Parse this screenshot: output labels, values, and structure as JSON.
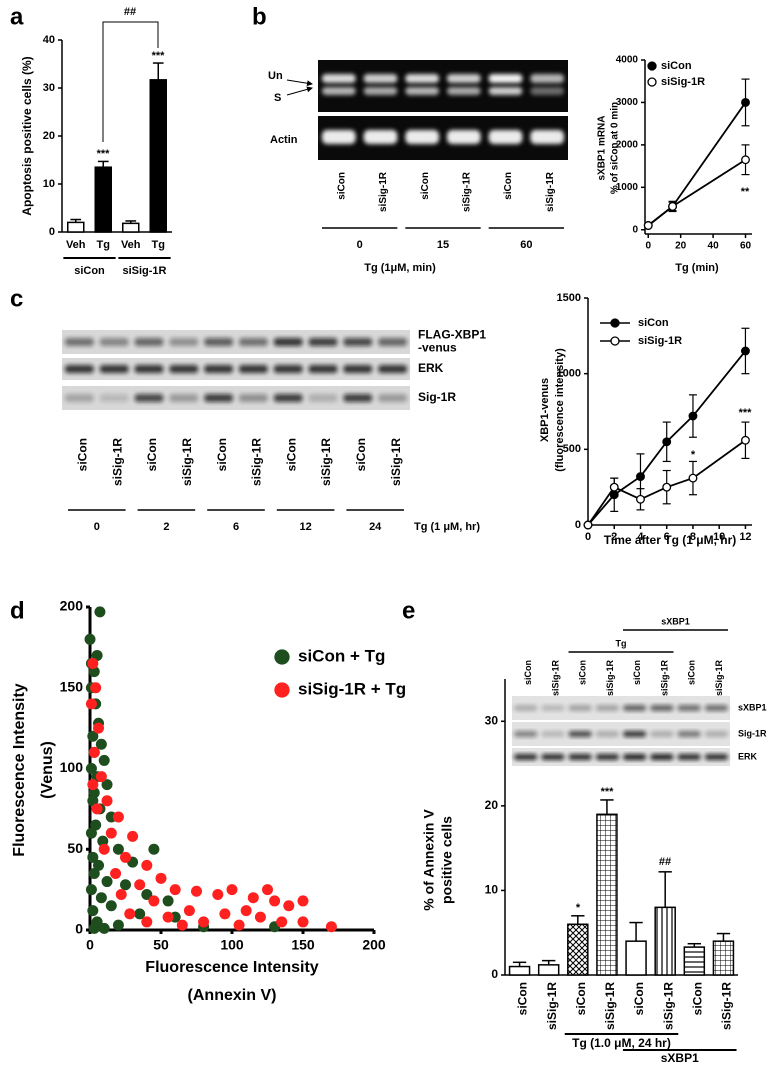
{
  "chart_data": [
    {
      "panel": "a",
      "type": "bar",
      "ylabel": [
        "Apoptosis positive cells (%)"
      ],
      "categories": [
        "Veh",
        "Tg",
        "Veh",
        "Tg"
      ],
      "groups": [
        "siCon",
        "siSig-1R"
      ],
      "values": [
        2,
        13.5,
        1.8,
        31.7
      ],
      "errors": [
        0.6,
        1.2,
        0.5,
        3.5
      ],
      "colors": [
        "#ffffff",
        "#000000",
        "#ffffff",
        "#000000"
      ],
      "ylim": [
        0,
        40
      ],
      "yticks": [
        0,
        10,
        20,
        30,
        40
      ],
      "annotations": [
        "***",
        "***",
        "##"
      ]
    },
    {
      "panel": "b",
      "type": "line",
      "ylabel": [
        "sXBP1 mRNA",
        "% of siCon at 0 min"
      ],
      "xlabel": "Tg (min)",
      "x": [
        0,
        15,
        60
      ],
      "series": [
        {
          "name": "siCon",
          "color": "#000000",
          "marker_fill": "#000000",
          "values": [
            100,
            550,
            3000
          ],
          "errors": [
            null,
            100,
            550
          ]
        },
        {
          "name": "siSig-1R",
          "color": "#000000",
          "marker_fill": "#ffffff",
          "values": [
            100,
            550,
            1650
          ],
          "errors": [
            null,
            120,
            350
          ]
        }
      ],
      "xlim": [
        -2,
        64
      ],
      "xticks": [
        0,
        20,
        40,
        60
      ],
      "ylim": [
        -100,
        4000
      ],
      "yticks": [
        0,
        1000,
        2000,
        3000,
        4000
      ],
      "legend": "top-left",
      "annotations": [
        "**"
      ],
      "gel": {
        "side_labels": [
          "Un",
          "S"
        ],
        "bands": [
          "Actin"
        ],
        "lanes": [
          "siCon",
          "siSig-1R",
          "siCon",
          "siSig-1R",
          "siCon",
          "siSig-1R"
        ],
        "groups": [
          0,
          15,
          60
        ],
        "group_title": "Tg (1μM, min)"
      }
    },
    {
      "panel": "c",
      "type": "line",
      "ylabel": [
        "XBP1-venus",
        "(fluorescence intensity)"
      ],
      "xlabel": "Time after Tg (1 μM, hr)",
      "x": [
        0,
        2,
        4,
        6,
        8,
        12
      ],
      "series": [
        {
          "name": "siCon",
          "color": "#000000",
          "marker_fill": "#000000",
          "values": [
            0,
            200,
            320,
            550,
            720,
            1150
          ],
          "errors": [
            null,
            110,
            150,
            130,
            140,
            150
          ]
        },
        {
          "name": "siSig-1R",
          "color": "#000000",
          "marker_fill": "#ffffff",
          "values": [
            0,
            250,
            170,
            250,
            310,
            560
          ],
          "errors": [
            null,
            60,
            70,
            110,
            110,
            120
          ]
        }
      ],
      "xlim": [
        0,
        12.5
      ],
      "xticks": [
        0,
        2,
        4,
        6,
        8,
        10,
        12
      ],
      "ylim": [
        0,
        1500
      ],
      "yticks": [
        0,
        500,
        1000,
        1500
      ],
      "legend": "top-left",
      "annotations": [
        "*",
        "***"
      ],
      "blot": {
        "bands": [
          [
            "FLAG-XBP1",
            "-venus"
          ],
          [
            "ERK"
          ],
          [
            "Sig-1R"
          ]
        ],
        "lanes": [
          "siCon",
          "siSig-1R",
          "siCon",
          "siSig-1R",
          "siCon",
          "siSig-1R",
          "siCon",
          "siSig-1R",
          "siCon",
          "siSig-1R"
        ],
        "groups": [
          0,
          2,
          6,
          12,
          24
        ],
        "group_title": "Tg (1 μM, hr)"
      }
    },
    {
      "panel": "d",
      "type": "scatter",
      "ylabel": [
        "Fluorescence Intensity",
        "(Venus)"
      ],
      "xlabel": [
        "Fluorescence Intensity",
        "(Annexin V)"
      ],
      "series": [
        {
          "name": "siCon + Tg",
          "color": "#1e4d1e",
          "x": [
            7,
            5,
            3,
            1,
            4,
            6,
            2,
            8,
            3,
            10,
            1,
            5,
            12,
            3,
            2,
            7,
            15,
            4,
            1,
            9,
            20,
            2,
            30,
            6,
            45,
            3,
            12,
            25,
            1,
            40,
            8,
            55,
            15,
            2,
            35,
            60,
            5,
            20,
            80,
            130,
            3,
            10,
            0,
            1
          ],
          "y": [
            197,
            170,
            160,
            150,
            140,
            128,
            120,
            115,
            110,
            105,
            100,
            95,
            90,
            85,
            80,
            75,
            70,
            65,
            60,
            55,
            50,
            45,
            42,
            40,
            50,
            35,
            30,
            28,
            25,
            22,
            20,
            18,
            15,
            12,
            10,
            8,
            5,
            3,
            2,
            2,
            1,
            1,
            180,
            165
          ]
        },
        {
          "name": "siSig-1R + Tg",
          "color": "#ff2020",
          "x": [
            2,
            4,
            1,
            6,
            3,
            8,
            2,
            12,
            5,
            20,
            15,
            30,
            10,
            25,
            40,
            18,
            50,
            35,
            60,
            22,
            75,
            45,
            90,
            100,
            115,
            125,
            130,
            140,
            150,
            110,
            95,
            70,
            55,
            120,
            135,
            170,
            105,
            80,
            65,
            40,
            28,
            150
          ],
          "y": [
            165,
            150,
            140,
            125,
            110,
            95,
            90,
            80,
            75,
            70,
            60,
            58,
            50,
            45,
            40,
            35,
            32,
            28,
            25,
            22,
            24,
            18,
            22,
            25,
            20,
            25,
            18,
            15,
            18,
            12,
            10,
            12,
            8,
            8,
            5,
            2,
            3,
            5,
            3,
            5,
            10,
            5
          ]
        }
      ],
      "xlim": [
        0,
        200
      ],
      "xticks": [
        0,
        50,
        100,
        150,
        200
      ],
      "ylim": [
        0,
        200
      ],
      "yticks": [
        0,
        50,
        100,
        150,
        200
      ],
      "legend": "top-right"
    },
    {
      "panel": "e",
      "type": "bar",
      "ylabel": [
        "% of Annexin V",
        "positive cells"
      ],
      "categories": [
        "siCon",
        "siSig-1R",
        "siCon",
        "siSig-1R",
        "siCon",
        "siSig-1R",
        "siCon",
        "siSig-1R"
      ],
      "groups": [
        "Tg (1.0 μM, 24 hr)",
        "sXBP1"
      ],
      "values": [
        1,
        1.2,
        6,
        19,
        4,
        8,
        3.3,
        4
      ],
      "errors": [
        0.5,
        0.5,
        1,
        1.7,
        2.2,
        4.2,
        0.4,
        0.9
      ],
      "patterns": [
        "none",
        "none",
        "crosshatch",
        "grid",
        "none",
        "vertical",
        "horizontal",
        "grid"
      ],
      "ylim": [
        0,
        35
      ],
      "yticks": [
        0,
        10,
        20,
        30
      ],
      "annotations": [
        "*",
        "***",
        "##"
      ],
      "blot": {
        "lanes": [
          "siCon",
          "siSig-1R",
          "siCon",
          "siSig-1R",
          "siCon",
          "siSig-1R",
          "siCon",
          "siSig-1R"
        ],
        "bands": [
          [
            "sXBP1"
          ],
          [
            "Sig-1R"
          ],
          [
            "ERK"
          ]
        ],
        "bars": [
          "Tg",
          "sXBP1"
        ]
      }
    }
  ]
}
